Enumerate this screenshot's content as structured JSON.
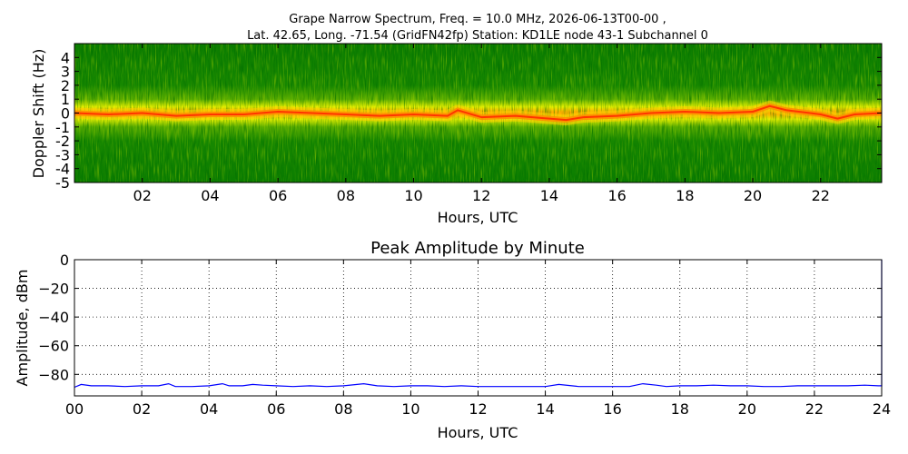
{
  "header": {
    "title_line1": "Grape Narrow Spectrum, Freq. = 10.0 MHz, 2026-06-13T00-00 ,",
    "title_line2": "Lat.  42.65, Long. -71.54 (GridFN42fp) Station: KD1LE node 43-1 Subchannel 0"
  },
  "chart_data": [
    {
      "type": "heatmap",
      "xlabel": "Hours, UTC",
      "ylabel": "Doppler Shift (Hz)",
      "xlim": [
        0,
        23.8
      ],
      "ylim": [
        -5,
        5
      ],
      "x_tick_labels": [
        "02",
        "04",
        "06",
        "08",
        "10",
        "12",
        "14",
        "16",
        "18",
        "20",
        "22"
      ],
      "x_tick_values": [
        2,
        4,
        6,
        8,
        10,
        12,
        14,
        16,
        18,
        20,
        22
      ],
      "y_tick_labels": [
        "4",
        "3",
        "2",
        "1",
        "0",
        "-1",
        "-2",
        "-3",
        "-4",
        "-5"
      ],
      "y_tick_values": [
        4,
        3,
        2,
        1,
        0,
        -1,
        -2,
        -3,
        -4,
        -5
      ],
      "colormap": [
        "#0b7d00",
        "#46a800",
        "#c8e000",
        "#ffff00",
        "#ff8c00",
        "#ff2a00"
      ],
      "peak_trace": {
        "x": [
          0,
          1,
          2,
          3,
          4,
          5,
          6,
          7,
          8,
          9,
          10,
          11,
          11.3,
          12,
          13,
          14,
          14.5,
          15,
          16,
          17,
          18,
          19,
          20,
          20.5,
          21,
          22,
          22.5,
          23,
          23.8
        ],
        "y": [
          0.0,
          -0.1,
          0.0,
          -0.2,
          -0.1,
          -0.1,
          0.1,
          0.0,
          -0.1,
          -0.2,
          -0.1,
          -0.2,
          0.2,
          -0.3,
          -0.2,
          -0.4,
          -0.5,
          -0.3,
          -0.2,
          0.0,
          0.1,
          0.0,
          0.1,
          0.5,
          0.2,
          -0.1,
          -0.4,
          -0.1,
          0.0
        ]
      },
      "grid": false
    },
    {
      "type": "line",
      "title": "Peak Amplitude by Minute",
      "xlabel": "Hours, UTC",
      "ylabel": "Amplitude, dBm",
      "xlim": [
        0,
        24
      ],
      "ylim": [
        -95,
        0
      ],
      "x_tick_labels": [
        "00",
        "02",
        "04",
        "06",
        "08",
        "10",
        "12",
        "14",
        "16",
        "18",
        "20",
        "22",
        "24"
      ],
      "x_tick_values": [
        0,
        2,
        4,
        6,
        8,
        10,
        12,
        14,
        16,
        18,
        20,
        22,
        24
      ],
      "y_tick_labels": [
        "0",
        "−20",
        "−40",
        "−60",
        "−80"
      ],
      "y_tick_values": [
        0,
        -20,
        -40,
        -60,
        -80
      ],
      "grid": true,
      "line_color": "#0000ff",
      "x": [
        0,
        0.2,
        0.5,
        1,
        1.5,
        2,
        2.5,
        2.8,
        3,
        3.5,
        4,
        4.4,
        4.6,
        5,
        5.3,
        5.6,
        6,
        6.5,
        7,
        7.5,
        8,
        8.6,
        9,
        9.5,
        10,
        10.5,
        11,
        11.5,
        12,
        12.5,
        13,
        13.5,
        14,
        14.4,
        15,
        15.5,
        16,
        16.5,
        16.9,
        17.3,
        17.6,
        18,
        18.5,
        19,
        19.5,
        20,
        20.5,
        21,
        21.5,
        22,
        22.5,
        23,
        23.5,
        23.9,
        24,
        24
      ],
      "y": [
        -89,
        -87,
        -88,
        -88,
        -88.5,
        -88,
        -88,
        -86.5,
        -88.5,
        -88.5,
        -88,
        -86.5,
        -88,
        -88,
        -87,
        -87.5,
        -88,
        -88.5,
        -88,
        -88.5,
        -88,
        -86.5,
        -88,
        -88.5,
        -88,
        -88,
        -88.5,
        -88,
        -88.5,
        -88.5,
        -88.5,
        -88.5,
        -88.5,
        -87,
        -88.5,
        -88.5,
        -88.5,
        -88.5,
        -86.5,
        -87.5,
        -88.5,
        -88,
        -88,
        -87.5,
        -88,
        -88,
        -88.5,
        -88.5,
        -88,
        -88,
        -88,
        -88,
        -87.5,
        -88,
        -88,
        0
      ]
    }
  ]
}
